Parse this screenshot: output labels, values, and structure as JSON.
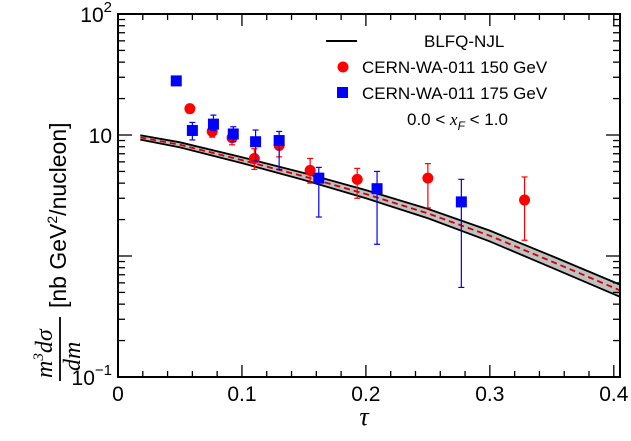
{
  "chart_data": {
    "type": "scatter",
    "xlabel": "τ",
    "ylabel_parts": {
      "num_m": "m",
      "num_exp": "3",
      "num_rest": "dσ",
      "den": "dm",
      "unit_open": "[nb GeV",
      "unit_exp": "2",
      "unit_close": "/nucleon]"
    },
    "xlim": [
      0,
      0.405
    ],
    "ylim": [
      0.1,
      100
    ],
    "yscale": "log",
    "x_ticks": [
      "0",
      "0.1",
      "0.2",
      "0.3",
      "0.4"
    ],
    "x_tick_values": [
      0,
      0.1,
      0.2,
      0.3,
      0.4
    ],
    "y_ticks": [
      {
        "value": 0.1,
        "base": "10",
        "exp": "−1"
      },
      {
        "value": 10,
        "base": "10",
        "exp": ""
      },
      {
        "value": 100,
        "base": "10",
        "exp": "2"
      }
    ],
    "legend": {
      "position": "top-right",
      "model_label": "BLFQ-NJL",
      "series1_label": "CERN-WA-011 150 GeV",
      "series2_label": "CERN-WA-011 175 GeV",
      "range_prefix": "0.0 < ",
      "range_var": "x",
      "range_sub": "F",
      "range_suffix": " < 1.0"
    },
    "colors": {
      "series1": "#ff0000",
      "series2": "#0000ff",
      "band": "#c0c0c0",
      "model": "#000000",
      "center": "#cc0000"
    },
    "series": [
      {
        "name": "CERN-WA-011 150 GeV",
        "marker": "circle",
        "points": [
          {
            "x": 0.058,
            "y": 16.5,
            "lo": 15.2,
            "hi": 17.8
          },
          {
            "x": 0.076,
            "y": 10.7,
            "lo": 9.6,
            "hi": 12.2
          },
          {
            "x": 0.092,
            "y": 9.5,
            "lo": 8.3,
            "hi": 10.6
          },
          {
            "x": 0.11,
            "y": 6.4,
            "lo": 5.2,
            "hi": 7.7
          },
          {
            "x": 0.13,
            "y": 8.2,
            "lo": 6.6,
            "hi": 9.8
          },
          {
            "x": 0.155,
            "y": 5.1,
            "lo": 4.0,
            "hi": 6.4
          },
          {
            "x": 0.193,
            "y": 4.3,
            "lo": 3.0,
            "hi": 5.3
          },
          {
            "x": 0.25,
            "y": 4.4,
            "lo": 2.5,
            "hi": 5.8
          },
          {
            "x": 0.328,
            "y": 2.9,
            "lo": 1.35,
            "hi": 4.5
          }
        ]
      },
      {
        "name": "CERN-WA-011 175 GeV",
        "marker": "square",
        "points": [
          {
            "x": 0.047,
            "y": 28.0,
            "lo": 25.8,
            "hi": 30.5
          },
          {
            "x": 0.06,
            "y": 10.9,
            "lo": 9.1,
            "hi": 12.7
          },
          {
            "x": 0.077,
            "y": 12.3,
            "lo": 10.9,
            "hi": 14.6
          },
          {
            "x": 0.093,
            "y": 10.2,
            "lo": 8.8,
            "hi": 11.7
          },
          {
            "x": 0.111,
            "y": 8.8,
            "lo": 6.1,
            "hi": 11.0
          },
          {
            "x": 0.13,
            "y": 9.0,
            "lo": 5.2,
            "hi": 10.7
          },
          {
            "x": 0.162,
            "y": 4.4,
            "lo": 2.1,
            "hi": 5.4
          },
          {
            "x": 0.209,
            "y": 3.6,
            "lo": 1.25,
            "hi": 5.0
          },
          {
            "x": 0.277,
            "y": 2.8,
            "lo": 0.55,
            "hi": 4.3
          }
        ]
      }
    ],
    "model": {
      "name": "BLFQ-NJL",
      "x": [
        0.018,
        0.05,
        0.1,
        0.15,
        0.2,
        0.25,
        0.3,
        0.35,
        0.405
      ],
      "upper": [
        9.95,
        8.7,
        6.55,
        4.85,
        3.5,
        2.45,
        1.62,
        1.0,
        0.58
      ],
      "center": [
        9.55,
        8.3,
        6.2,
        4.55,
        3.25,
        2.25,
        1.47,
        0.9,
        0.52
      ],
      "lower": [
        9.15,
        7.9,
        5.85,
        4.25,
        3.0,
        2.05,
        1.32,
        0.8,
        0.46
      ]
    }
  }
}
